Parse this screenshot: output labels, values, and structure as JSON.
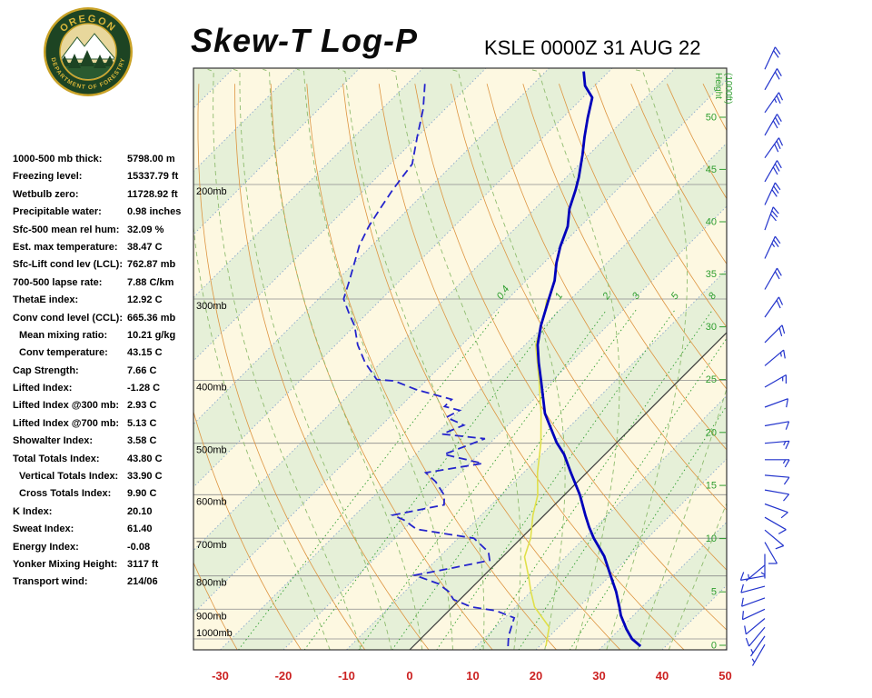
{
  "header": {
    "title": "Skew-T Log-P",
    "station_line": "KSLE 0000Z 31 AUG 22",
    "logo": {
      "org_top": "OREGON",
      "org_bottom": "DEPARTMENT OF FORESTRY"
    }
  },
  "indices": [
    {
      "label": "1000-500 mb thick:",
      "value": "5798.00 m",
      "indent": false
    },
    {
      "label": "Freezing level:",
      "value": "15337.79 ft",
      "indent": false
    },
    {
      "label": "Wetbulb zero:",
      "value": "11728.92 ft",
      "indent": false
    },
    {
      "label": "Precipitable water:",
      "value": "0.98 inches",
      "indent": false
    },
    {
      "label": "Sfc-500 mean rel hum:",
      "value": "32.09 %",
      "indent": false
    },
    {
      "label": "Est. max temperature:",
      "value": "38.47 C",
      "indent": false
    },
    {
      "label": "Sfc-Lift cond lev (LCL):",
      "value": "762.87 mb",
      "indent": false
    },
    {
      "label": "700-500 lapse rate:",
      "value": "7.88 C/km",
      "indent": false
    },
    {
      "label": "ThetaE index:",
      "value": "12.92 C",
      "indent": false
    },
    {
      "label": "Conv cond level (CCL):",
      "value": "665.36 mb",
      "indent": false
    },
    {
      "label": "Mean mixing ratio:",
      "value": "10.21 g/kg",
      "indent": true
    },
    {
      "label": "Conv temperature:",
      "value": "43.15 C",
      "indent": true
    },
    {
      "label": "Cap Strength:",
      "value": "7.66 C",
      "indent": false
    },
    {
      "label": "Lifted Index:",
      "value": "-1.28 C",
      "indent": false
    },
    {
      "label": "Lifted Index @300 mb:",
      "value": "2.93 C",
      "indent": false
    },
    {
      "label": "Lifted Index @700 mb:",
      "value": "5.13 C",
      "indent": false
    },
    {
      "label": "Showalter Index:",
      "value": "3.58 C",
      "indent": false
    },
    {
      "label": "Total Totals Index:",
      "value": "43.80 C",
      "indent": false
    },
    {
      "label": "Vertical Totals Index:",
      "value": "33.90 C",
      "indent": true
    },
    {
      "label": "Cross Totals Index:",
      "value": "9.90 C",
      "indent": true
    },
    {
      "label": "K Index:",
      "value": "20.10",
      "indent": false
    },
    {
      "label": "Sweat Index:",
      "value": "61.40",
      "indent": false
    },
    {
      "label": "Energy Index:",
      "value": "-0.08",
      "indent": false
    },
    {
      "label": "Yonker Mixing Height:",
      "value": "3117 ft",
      "indent": false
    },
    {
      "label": "Transport wind:",
      "value": "214/06",
      "indent": false
    }
  ],
  "chart_data": {
    "type": "skewt-log-p",
    "title": "Skew-T Log-P",
    "station": "KSLE 0000Z 31 AUG 22",
    "pressure_range_mb": [
      133,
      1040
    ],
    "temp_axis_range_c": [
      -30,
      50
    ],
    "isotherm_step_c": 10,
    "pressure_labels": [
      {
        "p": 200,
        "label": "200mb"
      },
      {
        "p": 300,
        "label": "300mb"
      },
      {
        "p": 400,
        "label": "400mb"
      },
      {
        "p": 500,
        "label": "500mb"
      },
      {
        "p": 600,
        "label": "600mb"
      },
      {
        "p": 700,
        "label": "700mb"
      },
      {
        "p": 800,
        "label": "800mb"
      },
      {
        "p": 900,
        "label": "900mb"
      },
      {
        "p": 1000,
        "label": "1000mb"
      }
    ],
    "temp_axis_ticks": [
      -30,
      -20,
      -10,
      0,
      10,
      20,
      30,
      40,
      50
    ],
    "height_ticks": [
      0,
      5,
      10,
      15,
      20,
      25,
      30,
      35,
      40,
      45,
      50
    ],
    "height_axis_label": "Height (1000ft)",
    "mixing_ratio_lines": [
      0.4,
      1,
      2,
      3,
      5,
      8,
      12,
      20
    ],
    "mixing_ratio_labels": [
      "0.4",
      "1",
      "2",
      "3",
      "5",
      "8"
    ],
    "temperature_profile": [
      [
        1026,
        36
      ],
      [
        1000,
        33.5
      ],
      [
        965,
        31
      ],
      [
        920,
        28
      ],
      [
        894,
        26.5
      ],
      [
        846,
        23.5
      ],
      [
        798,
        20
      ],
      [
        746,
        16
      ],
      [
        700,
        11.5
      ],
      [
        673,
        9
      ],
      [
        645,
        6.5
      ],
      [
        601,
        2.5
      ],
      [
        555,
        -2.5
      ],
      [
        520,
        -6.5
      ],
      [
        499,
        -9.5
      ],
      [
        472,
        -13
      ],
      [
        450,
        -16
      ],
      [
        428,
        -18.5
      ],
      [
        399,
        -22
      ],
      [
        376,
        -25
      ],
      [
        353,
        -28
      ],
      [
        330,
        -30.5
      ],
      [
        300,
        -33.5
      ],
      [
        281,
        -35.5
      ],
      [
        264,
        -38
      ],
      [
        249,
        -40
      ],
      [
        232,
        -42
      ],
      [
        218,
        -44.5
      ],
      [
        204,
        -46.5
      ],
      [
        195,
        -48
      ],
      [
        180,
        -51
      ],
      [
        169,
        -53.5
      ],
      [
        158,
        -56
      ],
      [
        147,
        -58.5
      ],
      [
        141,
        -61.5
      ],
      [
        134,
        -64
      ]
    ],
    "dewpoint_profile": [
      [
        1026,
        15
      ],
      [
        990,
        13.5
      ],
      [
        959,
        12.5
      ],
      [
        928,
        11.5
      ],
      [
        905,
        7.5
      ],
      [
        893,
        3
      ],
      [
        870,
        -1
      ],
      [
        846,
        -3
      ],
      [
        822,
        -6
      ],
      [
        798,
        -11
      ],
      [
        777,
        -6
      ],
      [
        757,
        -1.5
      ],
      [
        735,
        -3
      ],
      [
        700,
        -7.5
      ],
      [
        678,
        -18
      ],
      [
        656,
        -21.5
      ],
      [
        645,
        -24
      ],
      [
        622,
        -17.5
      ],
      [
        601,
        -19
      ],
      [
        573,
        -22.5
      ],
      [
        555,
        -25.5
      ],
      [
        537,
        -18
      ],
      [
        520,
        -25.5
      ],
      [
        492,
        -21.5
      ],
      [
        484,
        -29
      ],
      [
        469,
        -27
      ],
      [
        456,
        -31
      ],
      [
        445,
        -30
      ],
      [
        439,
        -33
      ],
      [
        428,
        -33
      ],
      [
        414,
        -40
      ],
      [
        401,
        -45
      ],
      [
        399,
        -48
      ],
      [
        376,
        -52.5
      ],
      [
        353,
        -56.5
      ],
      [
        330,
        -60
      ],
      [
        315,
        -63
      ],
      [
        300,
        -66
      ],
      [
        281,
        -68
      ],
      [
        264,
        -70
      ],
      [
        248,
        -72
      ],
      [
        232,
        -73.5
      ],
      [
        218,
        -74.5
      ],
      [
        204,
        -75.5
      ],
      [
        195,
        -76
      ],
      [
        186,
        -76.5
      ],
      [
        169,
        -80
      ],
      [
        153,
        -83.5
      ],
      [
        139,
        -87.5
      ]
    ],
    "wetbulb_profile": [
      [
        1026,
        21
      ],
      [
        959,
        18.5
      ],
      [
        893,
        13
      ],
      [
        846,
        10
      ],
      [
        798,
        7
      ],
      [
        748,
        3.5
      ],
      [
        700,
        1.5
      ],
      [
        645,
        -1.8
      ],
      [
        601,
        -4.2
      ],
      [
        555,
        -7.8
      ],
      [
        499,
        -12
      ],
      [
        450,
        -16.6
      ],
      [
        399,
        -22.3
      ],
      [
        353,
        -28.3
      ],
      [
        315,
        -32
      ],
      [
        300,
        -33.8
      ]
    ],
    "winds": [
      {
        "p": 1020,
        "dir": 210,
        "spd": 5
      },
      {
        "p": 990,
        "dir": 215,
        "spd": 6
      },
      {
        "p": 960,
        "dir": 220,
        "spd": 8
      },
      {
        "p": 930,
        "dir": 230,
        "spd": 8
      },
      {
        "p": 900,
        "dir": 245,
        "spd": 10
      },
      {
        "p": 865,
        "dir": 250,
        "spd": 10
      },
      {
        "p": 830,
        "dir": 255,
        "spd": 8
      },
      {
        "p": 800,
        "dir": 260,
        "spd": 8
      },
      {
        "p": 770,
        "dir": 230,
        "spd": 5
      },
      {
        "p": 740,
        "dir": 180,
        "spd": 5
      },
      {
        "p": 710,
        "dir": 150,
        "spd": 8
      },
      {
        "p": 680,
        "dir": 130,
        "spd": 10
      },
      {
        "p": 650,
        "dir": 120,
        "spd": 10
      },
      {
        "p": 620,
        "dir": 110,
        "spd": 12
      },
      {
        "p": 590,
        "dir": 100,
        "spd": 12
      },
      {
        "p": 560,
        "dir": 95,
        "spd": 12
      },
      {
        "p": 530,
        "dir": 90,
        "spd": 15
      },
      {
        "p": 500,
        "dir": 85,
        "spd": 15
      },
      {
        "p": 470,
        "dir": 80,
        "spd": 12
      },
      {
        "p": 440,
        "dir": 70,
        "spd": 12
      },
      {
        "p": 410,
        "dir": 60,
        "spd": 15
      },
      {
        "p": 380,
        "dir": 50,
        "spd": 15
      },
      {
        "p": 350,
        "dir": 45,
        "spd": 18
      },
      {
        "p": 320,
        "dir": 35,
        "spd": 20
      },
      {
        "p": 290,
        "dir": 30,
        "spd": 22
      },
      {
        "p": 260,
        "dir": 25,
        "spd": 25
      },
      {
        "p": 235,
        "dir": 20,
        "spd": 28
      },
      {
        "p": 215,
        "dir": 25,
        "spd": 30
      },
      {
        "p": 198,
        "dir": 30,
        "spd": 32
      },
      {
        "p": 182,
        "dir": 35,
        "spd": 30
      },
      {
        "p": 168,
        "dir": 30,
        "spd": 28
      },
      {
        "p": 155,
        "dir": 35,
        "spd": 25
      },
      {
        "p": 143,
        "dir": 30,
        "spd": 22
      },
      {
        "p": 133,
        "dir": 25,
        "spd": 20
      }
    ],
    "colors": {
      "band_cream": "#fdf8e1",
      "band_green": "#e6f0d8",
      "isotherm": "#8aa7cc",
      "zero_isotherm": "#3a3a3a",
      "dry_adiabat": "#dd9440",
      "moist_adiabat": "#8fbc6f",
      "mixing_ratio": "#2f9e2f",
      "pressure_line": "#8c8c8c",
      "border": "#333333",
      "temperature": "#0000bb",
      "dewpoint": "#2424cc",
      "wetbulb": "#e0e04a",
      "wind": "#2233cc",
      "axis_temp": "#cc2222",
      "height_green": "#2f9e2f",
      "text": "#000000"
    }
  }
}
